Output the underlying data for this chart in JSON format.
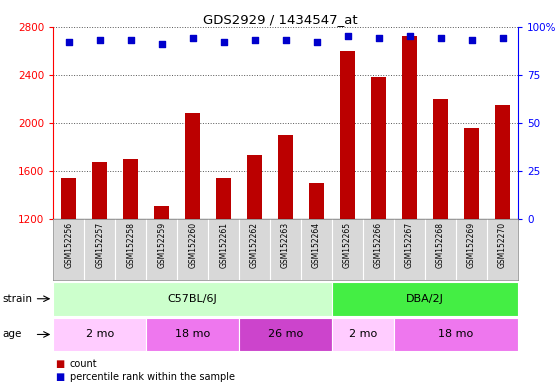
{
  "title": "GDS2929 / 1434547_at",
  "samples": [
    "GSM152256",
    "GSM152257",
    "GSM152258",
    "GSM152259",
    "GSM152260",
    "GSM152261",
    "GSM152262",
    "GSM152263",
    "GSM152264",
    "GSM152265",
    "GSM152266",
    "GSM152267",
    "GSM152268",
    "GSM152269",
    "GSM152270"
  ],
  "counts": [
    1540,
    1670,
    1700,
    1310,
    2080,
    1540,
    1730,
    1900,
    1500,
    2600,
    2380,
    2720,
    2200,
    1960,
    2150
  ],
  "percentile_ranks": [
    92,
    93,
    93,
    91,
    94,
    92,
    93,
    93,
    92,
    95,
    94,
    95,
    94,
    93,
    94
  ],
  "ylim_left": [
    1200,
    2800
  ],
  "ylim_right": [
    0,
    100
  ],
  "yticks_left": [
    1200,
    1600,
    2000,
    2400,
    2800
  ],
  "yticks_right": [
    0,
    25,
    50,
    75,
    100
  ],
  "bar_color": "#bb0000",
  "dot_color": "#0000cc",
  "grid_color": "#555555",
  "strain_groups": [
    {
      "label": "C57BL/6J",
      "start": 0,
      "end": 9,
      "color": "#ccffcc"
    },
    {
      "label": "DBA/2J",
      "start": 9,
      "end": 15,
      "color": "#44ee44"
    }
  ],
  "age_groups": [
    {
      "label": "2 mo",
      "start": 0,
      "end": 3,
      "color": "#ffccff"
    },
    {
      "label": "18 mo",
      "start": 3,
      "end": 6,
      "color": "#ee77ee"
    },
    {
      "label": "26 mo",
      "start": 6,
      "end": 9,
      "color": "#cc44cc"
    },
    {
      "label": "2 mo",
      "start": 9,
      "end": 11,
      "color": "#ffccff"
    },
    {
      "label": "18 mo",
      "start": 11,
      "end": 15,
      "color": "#ee77ee"
    }
  ]
}
